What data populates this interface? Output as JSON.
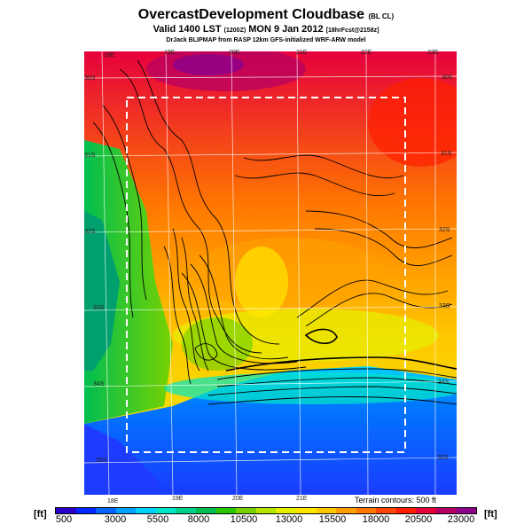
{
  "header": {
    "title": "OvercastDevelopment Cloudbase",
    "title_suffix": "(BL CL)",
    "valid_line": "Valid 1400 LST",
    "valid_zulu": "(1200Z)",
    "valid_date": "MON 9 Jan 2012",
    "forecast_tag": "[18hrFcst@2158z]",
    "credit": "DrJack BLIPMAP from RASP 12km GFS-initialized WRF-ARW model"
  },
  "map": {
    "top_lon_labels": [
      "18E",
      "19E",
      "20E",
      "21E",
      "22E",
      "23E"
    ],
    "bottom_lon_labels": [
      "18E",
      "19E",
      "20E",
      "21E"
    ],
    "left_lat_labels": [
      "30S",
      "31S",
      "32S",
      "33S",
      "34S",
      "35S"
    ],
    "right_lat_labels": [
      "30S",
      "31S",
      "32S",
      "33S",
      "34S",
      "35S"
    ],
    "terrain_note": "Terrain contours: 500 ft"
  },
  "legend": {
    "unit_left": "[ft]",
    "unit_right": "[ft]",
    "tick_labels": [
      "500",
      "3000",
      "5500",
      "8000",
      "10500",
      "13000",
      "15500",
      "18000",
      "20500",
      "23000"
    ],
    "colors": [
      "#2a00c8",
      "#0028ff",
      "#0064ff",
      "#00a0ff",
      "#00d2ff",
      "#00e6c8",
      "#00d28c",
      "#00be50",
      "#28c800",
      "#78d200",
      "#b4e600",
      "#e6f000",
      "#ffe600",
      "#ffc800",
      "#ffa000",
      "#ff7800",
      "#ff4600",
      "#ff1e00",
      "#e6003c",
      "#b40064",
      "#8c008c"
    ]
  }
}
